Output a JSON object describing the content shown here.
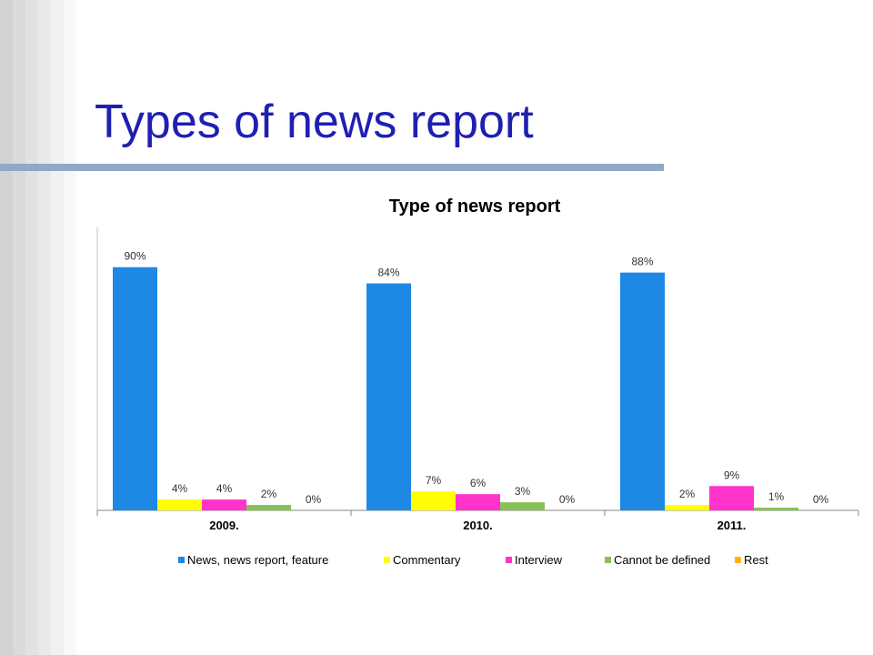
{
  "slide": {
    "title": "Types of news report"
  },
  "chart_data": {
    "type": "bar",
    "title": "Type of news report",
    "categories": [
      "2009.",
      "2010.",
      "2011."
    ],
    "series": [
      {
        "name": "News, news report, feature",
        "color": "#1e88e5",
        "values": [
          90,
          84,
          88
        ],
        "labels": [
          "90%",
          "84%",
          "88%"
        ]
      },
      {
        "name": "Commentary",
        "color": "#ffff00",
        "values": [
          4,
          7,
          2
        ],
        "labels": [
          "4%",
          "7%",
          "2%"
        ]
      },
      {
        "name": "Interview",
        "color": "#ff33cc",
        "values": [
          4,
          6,
          9
        ],
        "labels": [
          "4%",
          "6%",
          "9%"
        ]
      },
      {
        "name": "Cannot be defined",
        "color": "#88c057",
        "values": [
          2,
          3,
          1
        ],
        "labels": [
          "2%",
          "3%",
          "1%"
        ]
      },
      {
        "name": "Rest",
        "color": "#ffb300",
        "values": [
          0,
          0,
          0
        ],
        "labels": [
          "0%",
          "0%",
          "0%"
        ]
      }
    ],
    "ylim": [
      0,
      100
    ],
    "grid": false,
    "legend": "bottom"
  }
}
